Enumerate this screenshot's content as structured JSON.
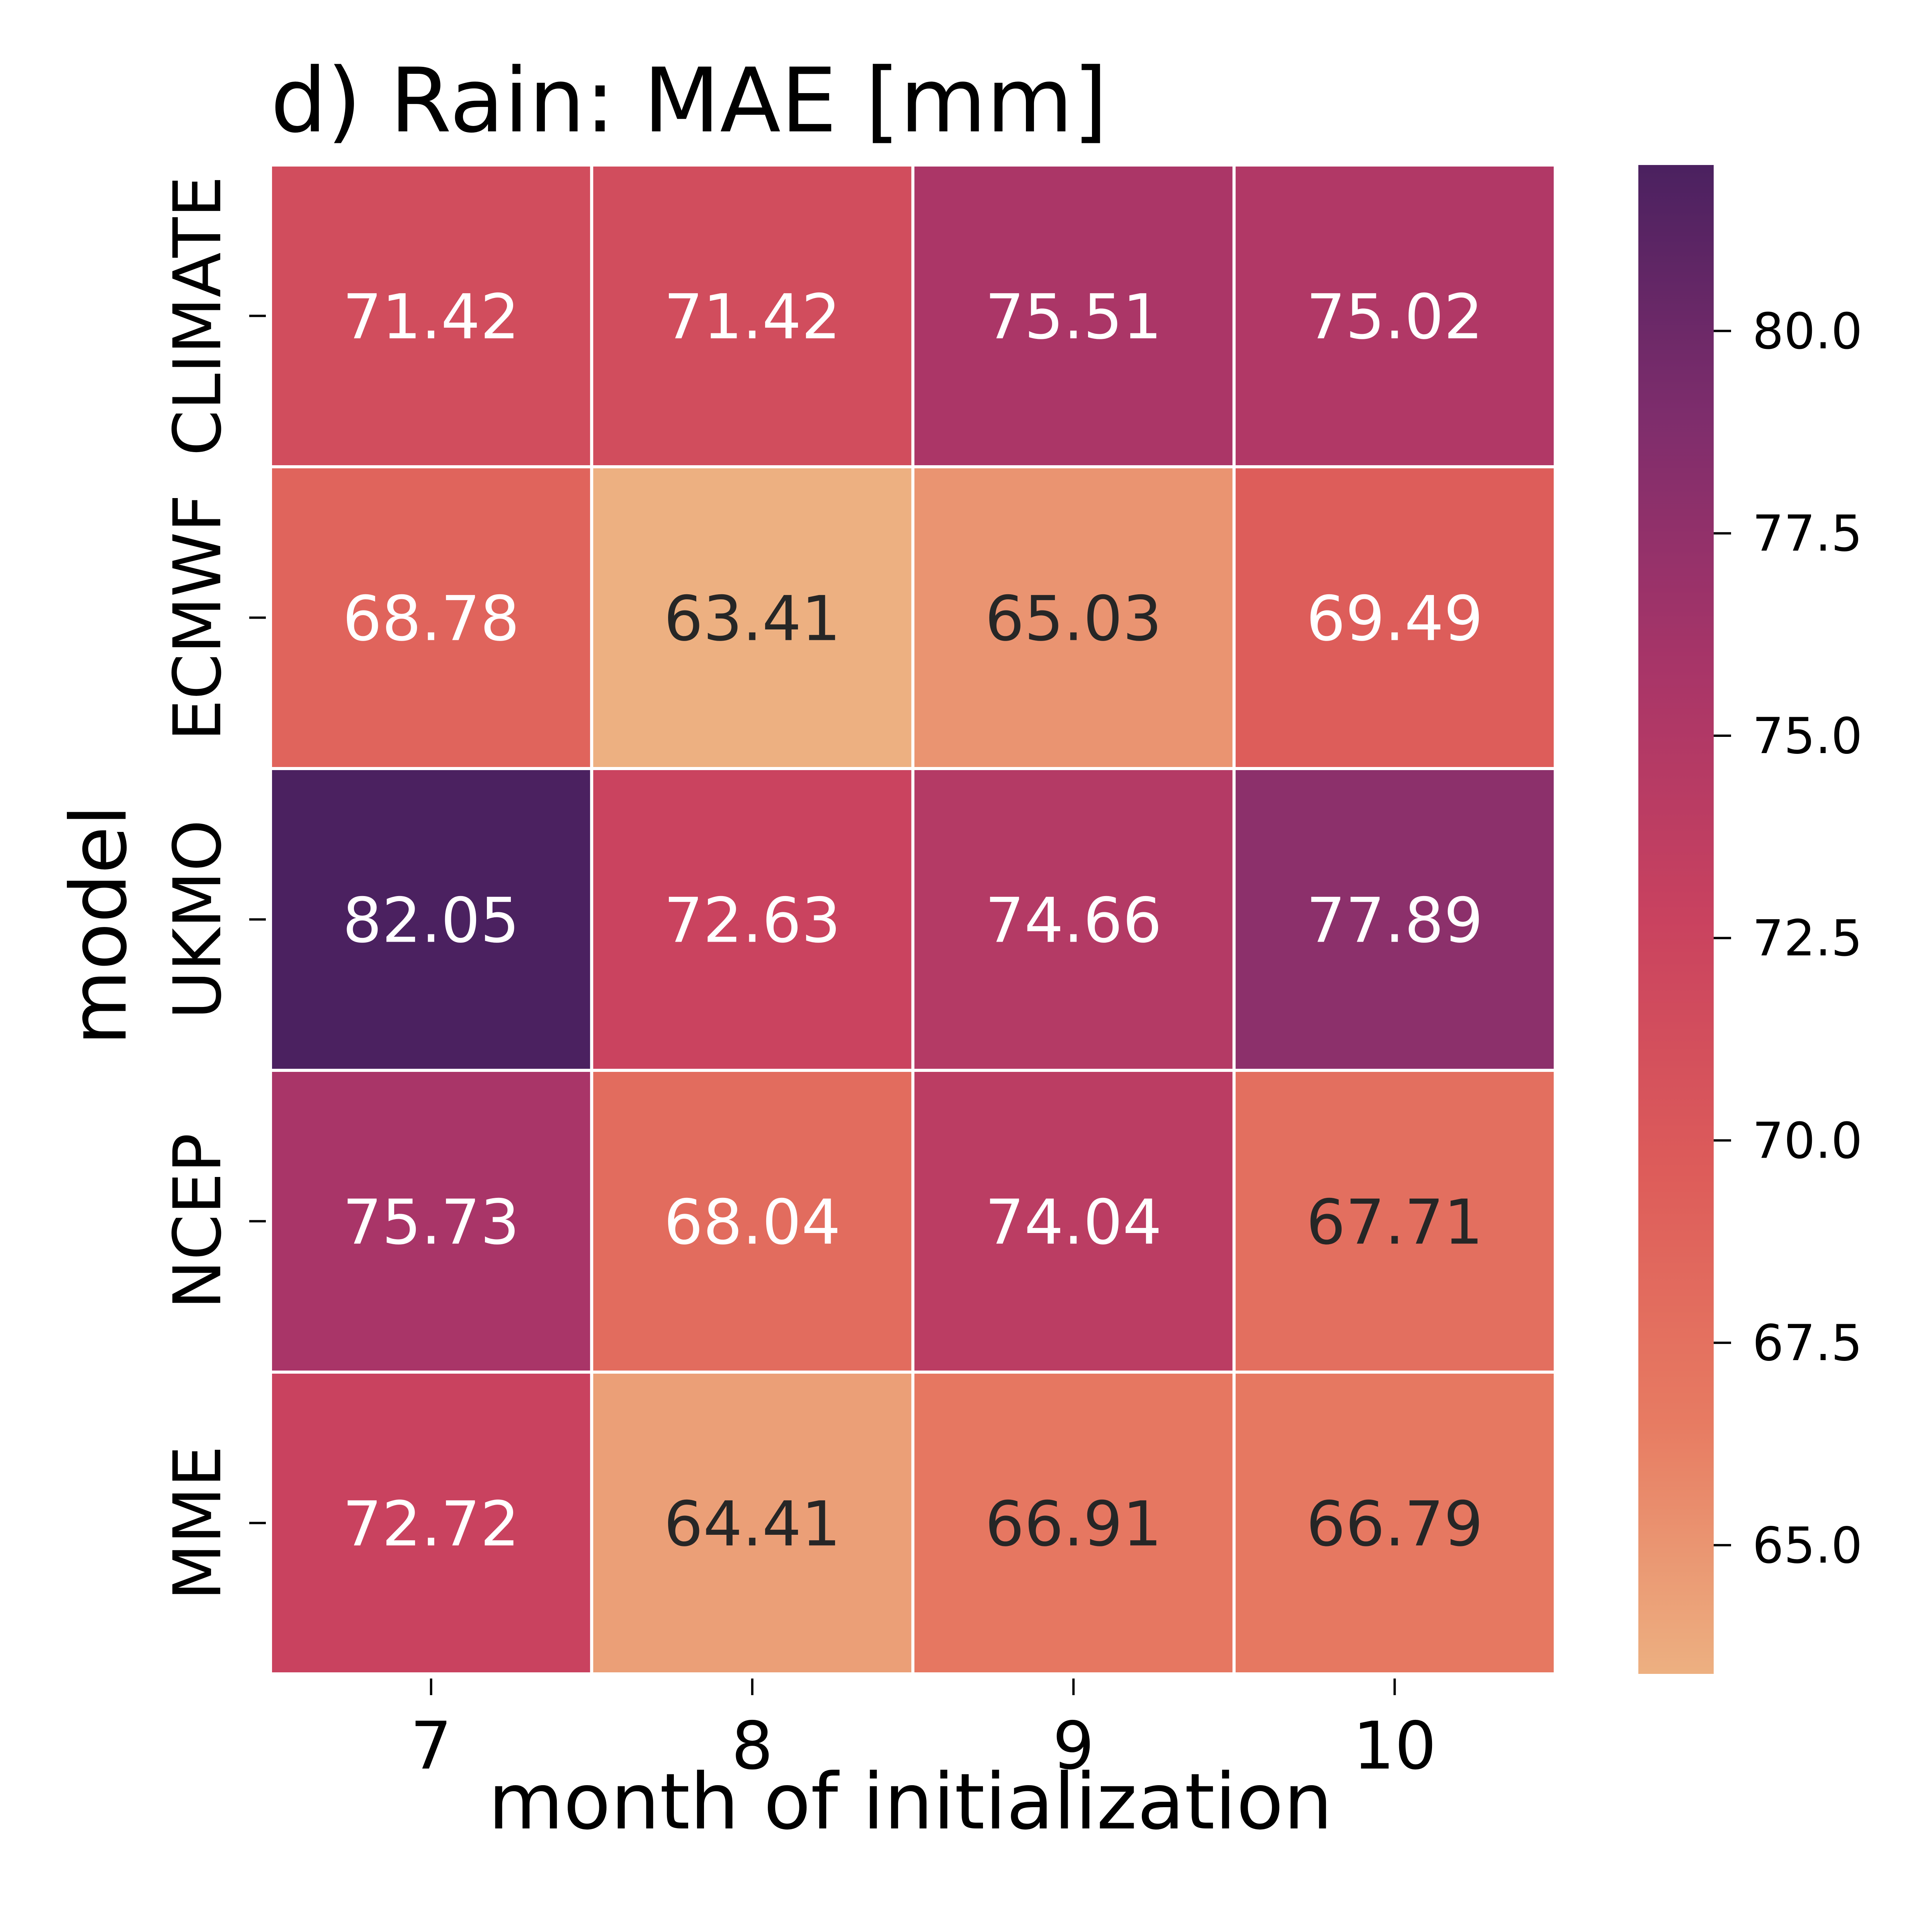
{
  "chart_data": {
    "type": "heatmap",
    "title": "d) Rain: MAE [mm]",
    "xlabel": "month of initialization",
    "ylabel": "model",
    "x_categories": [
      "7",
      "8",
      "9",
      "10"
    ],
    "y_categories": [
      "CLIMATE",
      "ECMWF",
      "UKMO",
      "NCEP",
      "MME"
    ],
    "values": [
      [
        71.42,
        71.42,
        75.51,
        75.02
      ],
      [
        68.78,
        63.41,
        65.03,
        69.49
      ],
      [
        82.05,
        72.63,
        74.66,
        77.89
      ],
      [
        75.73,
        68.04,
        74.04,
        67.71
      ],
      [
        72.72,
        64.41,
        66.91,
        66.79
      ]
    ],
    "value_labels": [
      [
        "71.42",
        "71.42",
        "75.51",
        "75.02"
      ],
      [
        "68.78",
        "63.41",
        "65.03",
        "69.49"
      ],
      [
        "82.05",
        "72.63",
        "74.66",
        "77.89"
      ],
      [
        "75.73",
        "68.04",
        "74.04",
        "67.71"
      ],
      [
        "72.72",
        "64.41",
        "66.91",
        "66.79"
      ]
    ],
    "colorbar": {
      "range": [
        63.41,
        82.05
      ],
      "ticks": [
        65.0,
        67.5,
        70.0,
        72.5,
        75.0,
        77.5,
        80.0
      ],
      "tick_labels": [
        "65.0",
        "67.5",
        "70.0",
        "72.5",
        "75.0",
        "77.5",
        "80.0"
      ],
      "colormap": "flare",
      "stops": [
        "#edb081",
        "#e77b62",
        "#dd5c5a",
        "#c9425f",
        "#a83568",
        "#7e2d6c",
        "#4b2160"
      ]
    },
    "grid_color": "#ffffff",
    "annotation_colors": {
      "light": "#ffffff",
      "dark": "#262626"
    }
  }
}
